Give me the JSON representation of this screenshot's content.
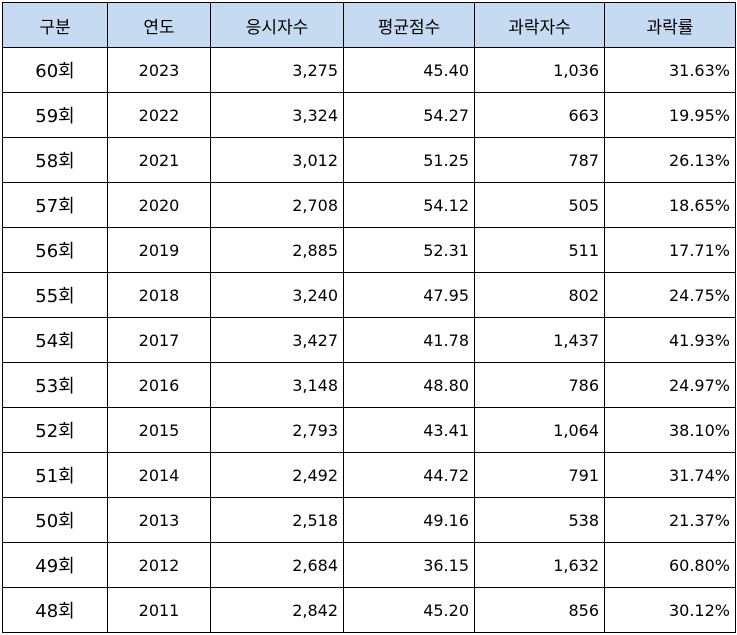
{
  "table": {
    "header": [
      "구분",
      "연도",
      "응시자수",
      "평균점수",
      "과락자수",
      "과락률"
    ],
    "rows": [
      [
        "60회",
        "2023",
        "3,275",
        "45.40",
        "1,036",
        "31.63%"
      ],
      [
        "59회",
        "2022",
        "3,324",
        "54.27",
        "663",
        "19.95%"
      ],
      [
        "58회",
        "2021",
        "3,012",
        "51.25",
        "787",
        "26.13%"
      ],
      [
        "57회",
        "2020",
        "2,708",
        "54.12",
        "505",
        "18.65%"
      ],
      [
        "56회",
        "2019",
        "2,885",
        "52.31",
        "511",
        "17.71%"
      ],
      [
        "55회",
        "2018",
        "3,240",
        "47.95",
        "802",
        "24.75%"
      ],
      [
        "54회",
        "2017",
        "3,427",
        "41.78",
        "1,437",
        "41.93%"
      ],
      [
        "53회",
        "2016",
        "3,148",
        "48.80",
        "786",
        "24.97%"
      ],
      [
        "52회",
        "2015",
        "2,793",
        "43.41",
        "1,064",
        "38.10%"
      ],
      [
        "51회",
        "2014",
        "2,492",
        "44.72",
        "791",
        "31.74%"
      ],
      [
        "50회",
        "2013",
        "2,518",
        "49.16",
        "538",
        "21.37%"
      ],
      [
        "49회",
        "2012",
        "2,684",
        "36.15",
        "1,632",
        "60.80%"
      ],
      [
        "48회",
        "2011",
        "2,842",
        "45.20",
        "856",
        "30.12%"
      ]
    ]
  }
}
